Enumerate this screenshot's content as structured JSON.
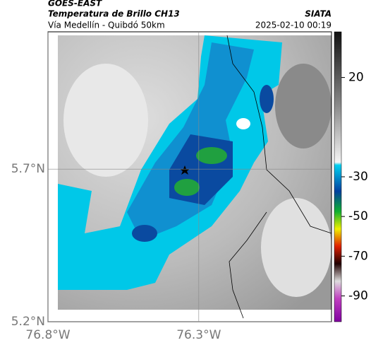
{
  "header": {
    "source": "GOES-EAST",
    "title": "Temperatura de Brillo CH13",
    "agency": "SIATA",
    "subtitle": "Vía Medellín - Quibdó 50km",
    "timestamp": "2025-02-10 00:19"
  },
  "map": {
    "xlim": [
      -76.8,
      -75.86
    ],
    "ylim": [
      5.2,
      6.15
    ],
    "xticks": [
      {
        "value": -76.8,
        "label": "76.8°W"
      },
      {
        "value": -76.3,
        "label": "76.3°W"
      }
    ],
    "yticks": [
      {
        "value": 5.2,
        "label": "5.2°N"
      },
      {
        "value": 5.7,
        "label": "5.7°N"
      }
    ]
  },
  "colorbar": {
    "clim": [
      -103,
      43
    ],
    "ticks": [
      20,
      -30,
      -50,
      -70,
      -90
    ]
  }
}
